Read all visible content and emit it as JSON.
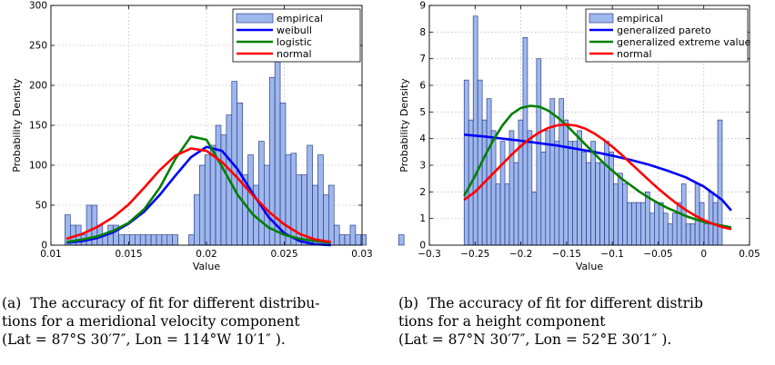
{
  "chart_data": [
    {
      "type": "bar",
      "xlabel": "Value",
      "ylabel": "Probability Density",
      "xlim": [
        0.01,
        0.03
      ],
      "ylim": [
        0,
        300
      ],
      "xticks": [
        0.01,
        0.015,
        0.02,
        0.025,
        0.03
      ],
      "xtick_labels": [
        "0.01",
        "0.015",
        "0.02",
        "0.025",
        "0.03"
      ],
      "yticks": [
        0,
        50,
        100,
        150,
        200,
        250,
        300
      ],
      "ytick_labels": [
        "0",
        "50",
        "100",
        "150",
        "200",
        "250",
        "300"
      ],
      "grid": true,
      "legend_position": "top-right",
      "histogram": {
        "name": "empirical",
        "color": "#9eb7ec",
        "bin_start": 0.0109,
        "bin_width": 0.000346,
        "values": [
          38,
          25,
          25,
          13,
          50,
          50,
          25,
          13,
          25,
          25,
          13,
          13,
          13,
          13,
          13,
          13,
          13,
          13,
          13,
          13,
          13,
          0,
          0,
          13,
          63,
          100,
          113,
          125,
          150,
          138,
          163,
          205,
          178,
          88,
          113,
          75,
          130,
          100,
          210,
          270,
          178,
          113,
          115,
          88,
          88,
          125,
          75,
          113,
          63,
          75,
          25,
          13,
          13,
          25,
          13,
          13,
          0,
          0,
          0,
          0,
          0,
          0,
          13
        ]
      },
      "series": [
        {
          "name": "weibull",
          "color": "#0000ff",
          "x": [
            0.011,
            0.012,
            0.013,
            0.014,
            0.015,
            0.016,
            0.017,
            0.018,
            0.019,
            0.02,
            0.021,
            0.022,
            0.023,
            0.024,
            0.025,
            0.026,
            0.027,
            0.028
          ],
          "y": [
            3,
            5,
            9,
            16,
            27,
            42,
            63,
            87,
            110,
            123,
            118,
            95,
            64,
            35,
            15,
            5,
            1,
            0
          ]
        },
        {
          "name": "logistic",
          "color": "#008000",
          "x": [
            0.011,
            0.012,
            0.013,
            0.014,
            0.015,
            0.016,
            0.017,
            0.018,
            0.019,
            0.02,
            0.021,
            0.022,
            0.023,
            0.024,
            0.025,
            0.026,
            0.027,
            0.028
          ],
          "y": [
            4,
            7,
            11,
            18,
            28,
            45,
            72,
            108,
            136,
            132,
            98,
            63,
            38,
            22,
            13,
            8,
            5,
            3
          ]
        },
        {
          "name": "normal",
          "color": "#ff0000",
          "x": [
            0.011,
            0.012,
            0.013,
            0.014,
            0.015,
            0.016,
            0.017,
            0.018,
            0.019,
            0.02,
            0.021,
            0.022,
            0.023,
            0.024,
            0.025,
            0.026,
            0.027,
            0.028
          ],
          "y": [
            8,
            14,
            23,
            35,
            51,
            72,
            94,
            112,
            121,
            118,
            104,
            84,
            62,
            42,
            26,
            14,
            7,
            4
          ]
        }
      ]
    },
    {
      "type": "bar",
      "xlabel": "Value",
      "ylabel": "Probability Density",
      "xlim": [
        -0.3,
        0.05
      ],
      "ylim": [
        0,
        9
      ],
      "xticks": [
        -0.3,
        -0.25,
        -0.2,
        -0.15,
        -0.1,
        -0.05,
        0,
        0.05
      ],
      "xtick_labels": [
        "−0.3",
        "−0.25",
        "−0.2",
        "−0.15",
        "−0.1",
        "−0.05",
        "0",
        "0.05"
      ],
      "yticks": [
        0,
        1,
        2,
        3,
        4,
        5,
        6,
        7,
        8,
        9
      ],
      "ytick_labels": [
        "0",
        "1",
        "2",
        "3",
        "4",
        "5",
        "6",
        "7",
        "8",
        "9"
      ],
      "grid": true,
      "legend_position": "top-right",
      "histogram": {
        "name": "empirical",
        "color": "#9eb7ec",
        "bin_start": -0.262,
        "bin_width": 0.00495,
        "values": [
          6.2,
          4.7,
          8.6,
          6.2,
          4.7,
          5.5,
          4.3,
          2.3,
          3.9,
          2.3,
          4.3,
          3.1,
          4.7,
          7.8,
          4.3,
          2.0,
          7.0,
          3.5,
          4.3,
          5.5,
          3.9,
          5.5,
          4.7,
          3.9,
          3.9,
          4.3,
          3.5,
          3.1,
          3.9,
          3.1,
          3.1,
          3.9,
          3.5,
          2.3,
          2.7,
          2.3,
          1.6,
          1.6,
          1.6,
          1.6,
          2.0,
          1.2,
          1.6,
          1.6,
          1.2,
          0.8,
          1.2,
          1.6,
          2.3,
          0.8,
          0.8,
          2.3,
          1.6,
          0.8,
          2.0,
          1.6,
          4.7
        ]
      },
      "series": [
        {
          "name": "generalized pareto",
          "color": "#0000ff",
          "x": [
            -0.262,
            -0.24,
            -0.22,
            -0.2,
            -0.18,
            -0.16,
            -0.14,
            -0.12,
            -0.1,
            -0.08,
            -0.06,
            -0.04,
            -0.02,
            0.0,
            0.01,
            0.02,
            0.03
          ],
          "y": [
            4.15,
            4.08,
            4.0,
            3.92,
            3.83,
            3.74,
            3.62,
            3.5,
            3.36,
            3.2,
            3.02,
            2.8,
            2.55,
            2.2,
            1.95,
            1.7,
            1.3
          ]
        },
        {
          "name": "generalized extreme value",
          "color": "#008000",
          "x": [
            -0.262,
            -0.25,
            -0.24,
            -0.23,
            -0.22,
            -0.21,
            -0.2,
            -0.19,
            -0.18,
            -0.17,
            -0.16,
            -0.15,
            -0.14,
            -0.13,
            -0.12,
            -0.11,
            -0.1,
            -0.09,
            -0.08,
            -0.07,
            -0.06,
            -0.05,
            -0.04,
            -0.03,
            -0.02,
            -0.01,
            0.0,
            0.01,
            0.02,
            0.03
          ],
          "y": [
            1.85,
            2.6,
            3.3,
            3.95,
            4.5,
            4.92,
            5.15,
            5.23,
            5.2,
            5.05,
            4.8,
            4.5,
            4.15,
            3.8,
            3.45,
            3.1,
            2.8,
            2.5,
            2.25,
            2.0,
            1.78,
            1.58,
            1.4,
            1.25,
            1.1,
            0.98,
            0.88,
            0.8,
            0.73,
            0.67
          ]
        },
        {
          "name": "normal",
          "color": "#ff0000",
          "x": [
            -0.262,
            -0.25,
            -0.24,
            -0.23,
            -0.22,
            -0.21,
            -0.2,
            -0.19,
            -0.18,
            -0.17,
            -0.16,
            -0.15,
            -0.14,
            -0.13,
            -0.12,
            -0.11,
            -0.1,
            -0.09,
            -0.08,
            -0.07,
            -0.06,
            -0.05,
            -0.04,
            -0.03,
            -0.02,
            -0.01,
            0.0,
            0.01,
            0.02,
            0.03
          ],
          "y": [
            1.7,
            2.0,
            2.35,
            2.7,
            3.05,
            3.4,
            3.72,
            4.0,
            4.23,
            4.4,
            4.5,
            4.53,
            4.49,
            4.38,
            4.2,
            3.97,
            3.7,
            3.4,
            3.08,
            2.76,
            2.44,
            2.13,
            1.84,
            1.57,
            1.33,
            1.12,
            0.94,
            0.8,
            0.68,
            0.6
          ]
        }
      ]
    }
  ],
  "captions": {
    "a": {
      "line1": "(a)  The accuracy of fit for different distribu-",
      "line2": "tions for a meridional velocity component",
      "line3": "(Lat = 87°S 30′7″, Lon = 114°W 10′1″ )."
    },
    "b": {
      "line1": "(b)  The accuracy of fit for different distrib",
      "line2": "tions for a height component",
      "line3": "(Lat = 87°N 30′7″, Lon = 52°E 30′1″ )."
    }
  }
}
